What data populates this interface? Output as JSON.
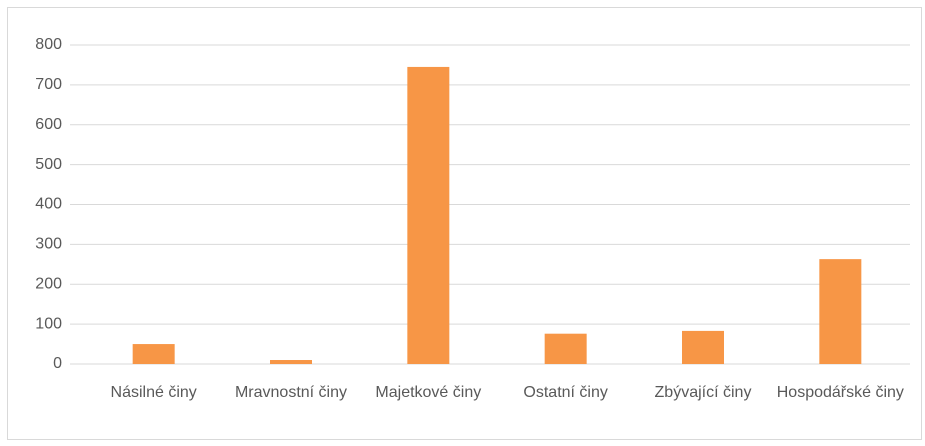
{
  "chart_data": {
    "type": "bar",
    "categories": [
      "Násilné činy",
      "Mravnostní činy",
      "Majetkové činy",
      "Ostatní činy",
      "Zbývající činy",
      "Hospodářské činy"
    ],
    "values": [
      50,
      10,
      745,
      76,
      83,
      263
    ],
    "color": "#f79646",
    "ylim": [
      0,
      800
    ],
    "yticks": [
      0,
      100,
      200,
      300,
      400,
      500,
      600,
      700,
      800
    ],
    "grid": true
  }
}
